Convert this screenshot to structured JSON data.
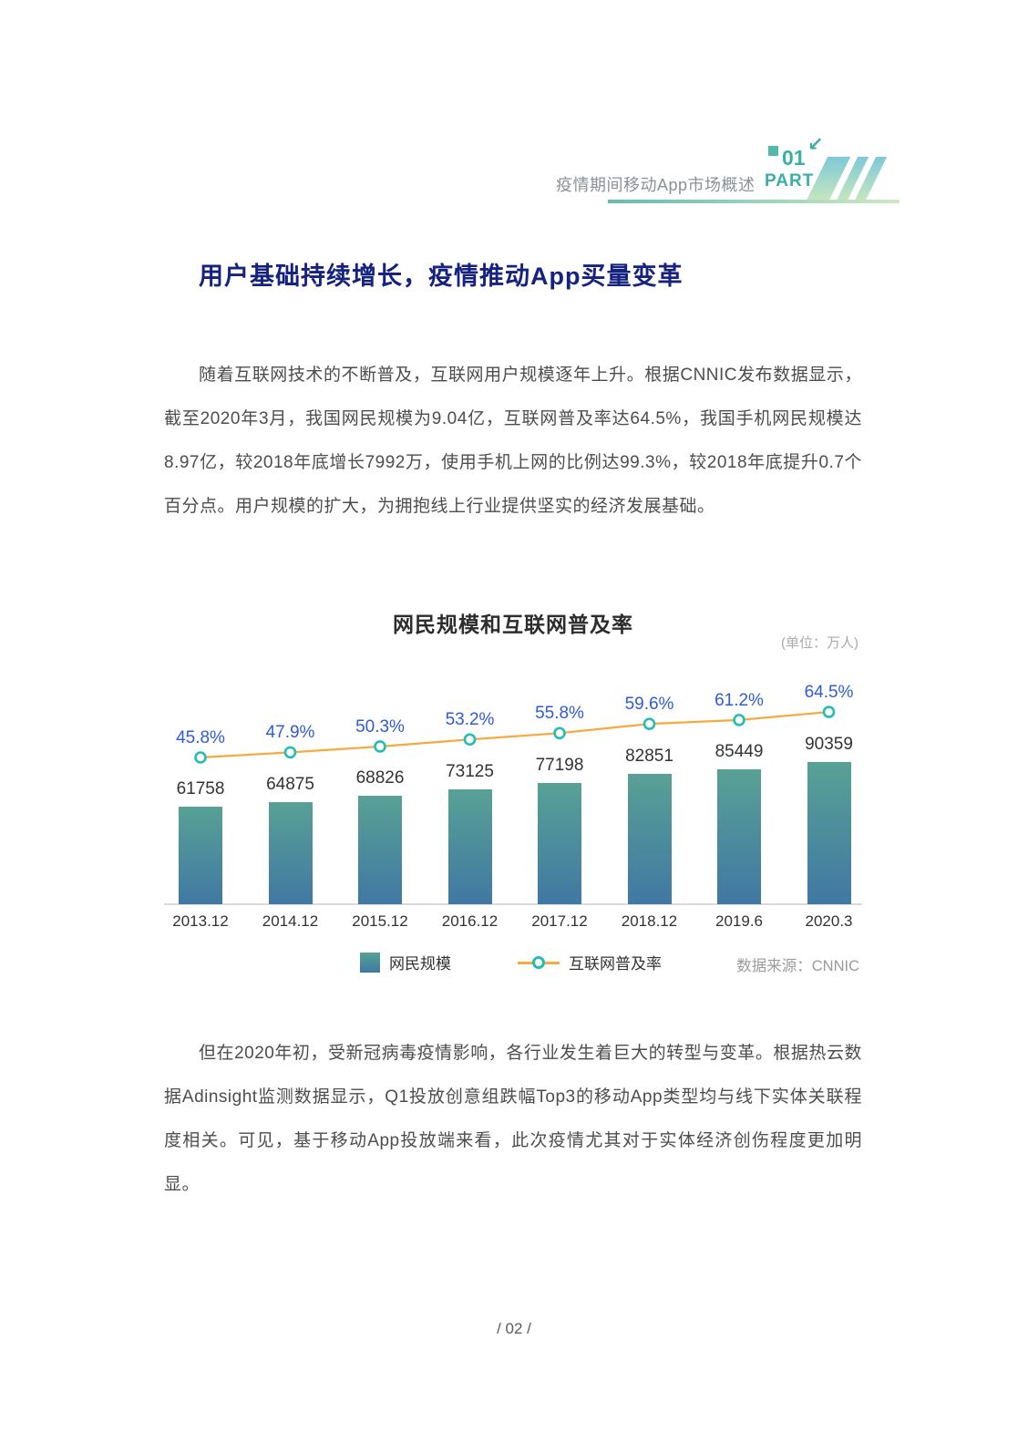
{
  "header": {
    "section_label": "疫情期间移动App市场概述",
    "part_label": "PART",
    "part_number": "01",
    "arrow_glyph": "↙"
  },
  "page": {
    "title": "用户基础持续增长，疫情推动App买量变革",
    "footer": "/ 02 /"
  },
  "paragraphs": {
    "p1": "随着互联网技术的不断普及，互联网用户规模逐年上升。根据CNNIC发布数据显示，截至2020年3月，我国网民规模为9.04亿，互联网普及率达64.5%，我国手机网民规模达8.97亿，较2018年底增长7992万，使用手机上网的比例达99.3%，较2018年底提升0.7个百分点。用户规模的扩大，为拥抱线上行业提供坚实的经济发展基础。",
    "p2": "但在2020年初，受新冠病毒疫情影响，各行业发生着巨大的转型与变革。根据热云数据Adinsight监测数据显示，Q1投放创意组跌幅Top3的移动App类型均与线下实体关联程度相关。可见，基于移动App投放端来看，此次疫情尤其对于实体经济创伤程度更加明显。"
  },
  "chart": {
    "title": "网民规模和互联网普及率",
    "unit": "(单位：万人)",
    "legend": [
      {
        "label": "网民规模"
      },
      {
        "label": "互联网普及率"
      }
    ],
    "source": "数据来源：CNNIC"
  },
  "chart_data": {
    "type": "bar",
    "title": "网民规模和互联网普及率",
    "categories": [
      "2013.12",
      "2014.12",
      "2015.12",
      "2016.12",
      "2017.12",
      "2018.12",
      "2019.6",
      "2020.3"
    ],
    "series": [
      {
        "name": "网民规模",
        "type": "bar",
        "unit": "万人",
        "values": [
          61758,
          64875,
          68826,
          73125,
          77198,
          82851,
          85449,
          90359
        ]
      },
      {
        "name": "互联网普及率",
        "type": "line",
        "unit": "%",
        "values": [
          45.8,
          47.9,
          50.3,
          53.2,
          55.8,
          59.6,
          61.2,
          64.5
        ]
      }
    ],
    "ylabel": "万人",
    "source": "CNNIC",
    "legend_position": "bottom",
    "grid": false,
    "colors": {
      "bar_gradient_top": "#58a195",
      "bar_gradient_bottom": "#4078a3",
      "line": "#f7a83f",
      "marker_ring": "#23beb1",
      "percent_label": "#2f5bd8",
      "value_label": "#333333"
    }
  }
}
